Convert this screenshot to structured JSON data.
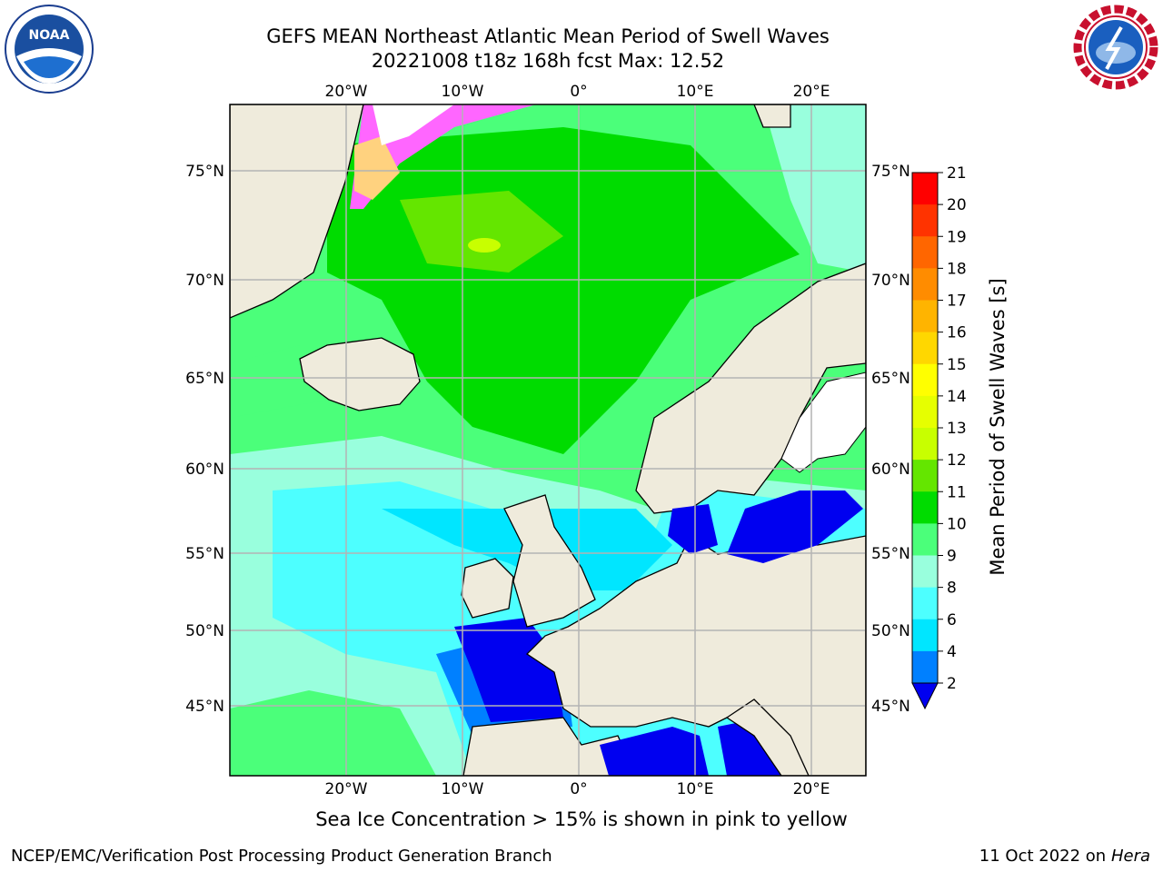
{
  "header": {
    "title_line1": "GEFS MEAN Northeast Atlantic Mean Period of Swell Waves",
    "title_line2": "20221008 t18z 168h fcst   Max: 12.52"
  },
  "logos": {
    "left": "NOAA",
    "right_text": "NATIONAL WEATHER SERVICE"
  },
  "map": {
    "lon_labels_top": [
      "20°W",
      "10°W",
      "0°",
      "10°E",
      "20°E"
    ],
    "lon_labels_bottom": [
      "20°W",
      "10°W",
      "0°",
      "10°E",
      "20°E"
    ],
    "lat_labels_left": [
      "75°N",
      "70°N",
      "65°N",
      "60°N",
      "55°N",
      "50°N",
      "45°N"
    ],
    "lat_labels_right": [
      "75°N",
      "70°N",
      "65°N",
      "60°N",
      "55°N",
      "50°N",
      "45°N"
    ],
    "land_color": "#efebdc",
    "ocean_base_color": "#4bff7a",
    "gridline_color": "#b4b4b4"
  },
  "colorbar": {
    "label": "Mean Period of Swell Waves [s]",
    "ticks": [
      "21",
      "20",
      "19",
      "18",
      "17",
      "16",
      "15",
      "14",
      "13",
      "12",
      "11",
      "10",
      "9",
      "8",
      "6",
      "4",
      "2"
    ],
    "colors": [
      "#ff0000",
      "#ff3300",
      "#ff6600",
      "#ff8c00",
      "#ffb400",
      "#ffd700",
      "#ffff00",
      "#e6ff00",
      "#c8ff00",
      "#64e600",
      "#00dc00",
      "#4bff7a",
      "#99ffdd",
      "#4dffff",
      "#00e6ff",
      "#0080ff",
      "#0000f0"
    ]
  },
  "caption": "Sea Ice Concentration > 15% is shown in pink to yellow",
  "footer": {
    "left": "NCEP/EMC/Verification Post Processing Product Generation Branch",
    "right_prefix": "11 Oct 2022 on ",
    "right_host": "Hera"
  }
}
